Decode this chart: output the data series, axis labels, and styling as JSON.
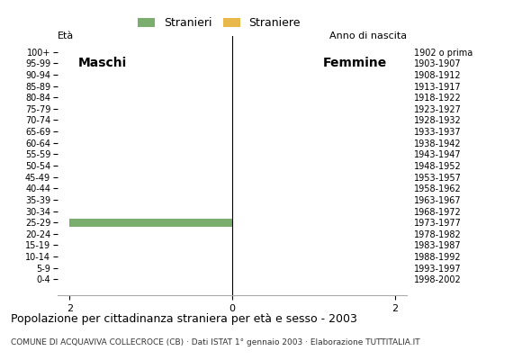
{
  "age_groups": [
    "100+",
    "95-99",
    "90-94",
    "85-89",
    "80-84",
    "75-79",
    "70-74",
    "65-69",
    "60-64",
    "55-59",
    "50-54",
    "45-49",
    "40-44",
    "35-39",
    "30-34",
    "25-29",
    "20-24",
    "15-19",
    "10-14",
    "5-9",
    "0-4"
  ],
  "birth_years": [
    "1902 o prima",
    "1903-1907",
    "1908-1912",
    "1913-1917",
    "1918-1922",
    "1923-1927",
    "1928-1932",
    "1933-1937",
    "1938-1942",
    "1943-1947",
    "1948-1952",
    "1953-1957",
    "1958-1962",
    "1963-1967",
    "1968-1972",
    "1973-1977",
    "1978-1982",
    "1983-1987",
    "1988-1992",
    "1993-1997",
    "1998-2002"
  ],
  "males_stranieri": [
    0,
    0,
    0,
    0,
    0,
    0,
    0,
    0,
    0,
    0,
    0,
    0,
    0,
    0,
    0,
    2,
    0,
    0,
    0,
    0,
    0
  ],
  "males_straniere": [
    0,
    0,
    0,
    0,
    0,
    0,
    0,
    0,
    0,
    0,
    0,
    0,
    0,
    0,
    0,
    0,
    0,
    0,
    0,
    0,
    0
  ],
  "females_stranieri": [
    0,
    0,
    0,
    0,
    0,
    0,
    0,
    0,
    0,
    0,
    0,
    0,
    0,
    0,
    0,
    0,
    0,
    0,
    0,
    0,
    0
  ],
  "females_straniere": [
    0,
    0,
    0,
    0,
    0,
    0,
    0,
    0,
    0,
    0,
    0,
    0,
    0,
    0,
    0,
    0,
    0,
    0,
    0,
    0,
    0
  ],
  "color_stranieri": "#7aad6e",
  "color_straniere": "#e8b84b",
  "xlim": [
    -2,
    2
  ],
  "xticks": [
    -2,
    0,
    2
  ],
  "title": "Popolazione per cittadinanza straniera per età e sesso - 2003",
  "subtitle": "COMUNE DI ACQUAVIVA COLLECROCE (CB) · Dati ISTAT 1° gennaio 2003 · Elaborazione TUTTITALIA.IT",
  "legend_stranieri": "Stranieri",
  "legend_straniere": "Straniere",
  "label_eta": "Età",
  "label_anno": "Anno di nascita",
  "label_maschi": "Maschi",
  "label_femmine": "Femmine",
  "background_color": "#ffffff"
}
